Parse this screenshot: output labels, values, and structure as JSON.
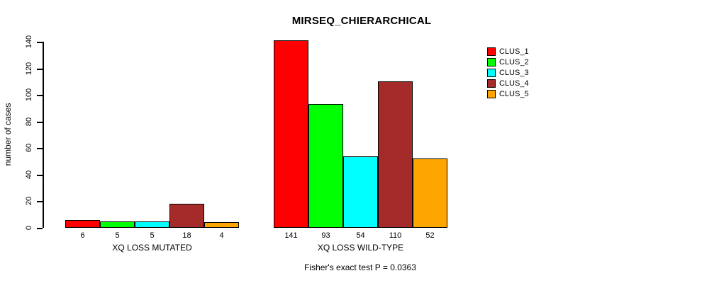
{
  "chart_data": {
    "type": "bar",
    "title": "MIRSEQ_CHIERARCHICAL",
    "ylabel": "number of cases",
    "xlabel": "",
    "yticks": [
      0,
      20,
      40,
      60,
      80,
      100,
      120,
      140
    ],
    "ylim": [
      0,
      147
    ],
    "grid": false,
    "legend_position": "right-outside",
    "categories": [
      "XQ LOSS MUTATED",
      "XQ LOSS WILD-TYPE"
    ],
    "groups": [
      {
        "label": "XQ LOSS MUTATED",
        "values": [
          6,
          5,
          5,
          18,
          4
        ]
      },
      {
        "label": "XQ LOSS WILD-TYPE",
        "values": [
          141,
          93,
          54,
          110,
          52
        ]
      }
    ],
    "series": [
      {
        "name": "CLUS_1",
        "color": "#FF0000",
        "values": [
          6,
          141
        ]
      },
      {
        "name": "CLUS_2",
        "color": "#00FF00",
        "values": [
          5,
          93
        ]
      },
      {
        "name": "CLUS_3",
        "color": "#00FFFF",
        "values": [
          5,
          54
        ]
      },
      {
        "name": "CLUS_4",
        "color": "#A52A2A",
        "values": [
          18,
          110
        ]
      },
      {
        "name": "CLUS_5",
        "color": "#FFA500",
        "values": [
          4,
          52
        ]
      }
    ],
    "bar_labels_shown": true,
    "footnote": "Fisher's exact test P = 0.0363",
    "text_color": "#000000",
    "background_color": "#FFFFFF"
  }
}
